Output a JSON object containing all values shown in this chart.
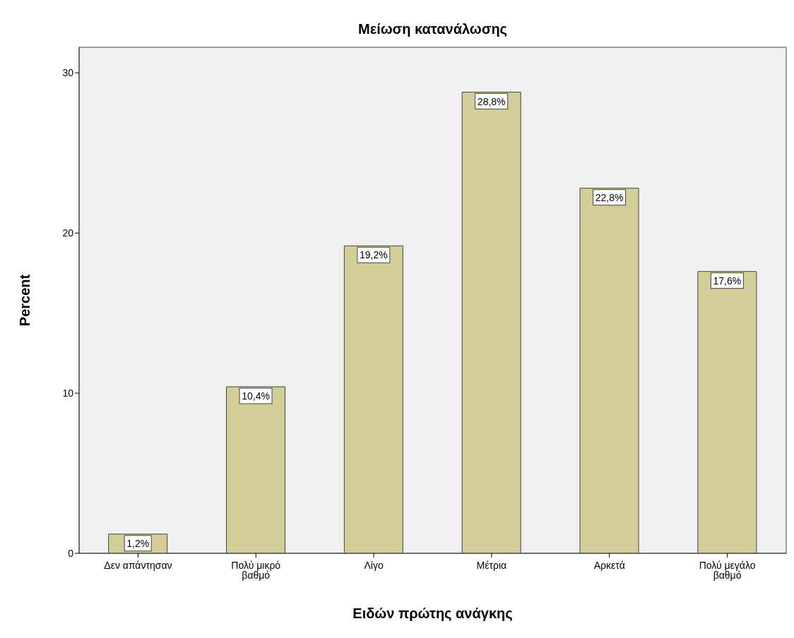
{
  "chart_data": {
    "type": "bar",
    "title": "Μείωση κατανάλωσης",
    "xlabel": "Ειδών πρώτης ανάγκης",
    "ylabel": "Percent",
    "categories": [
      "Δεν απάντησαν",
      "Πολύ μικρό βαθμό",
      "Λίγο",
      "Μέτρια",
      "Αρκετά",
      "Πολύ μεγάλο βαθμό"
    ],
    "values": [
      1.2,
      10.4,
      19.2,
      28.8,
      22.8,
      17.6
    ],
    "value_labels": [
      "1,2%",
      "10,4%",
      "19,2%",
      "28,8%",
      "22,8%",
      "17,6%"
    ],
    "color": "#d3ce97",
    "ylim": [
      0,
      31.6
    ],
    "yticks": [
      0,
      10,
      20,
      30
    ],
    "grid": false
  }
}
